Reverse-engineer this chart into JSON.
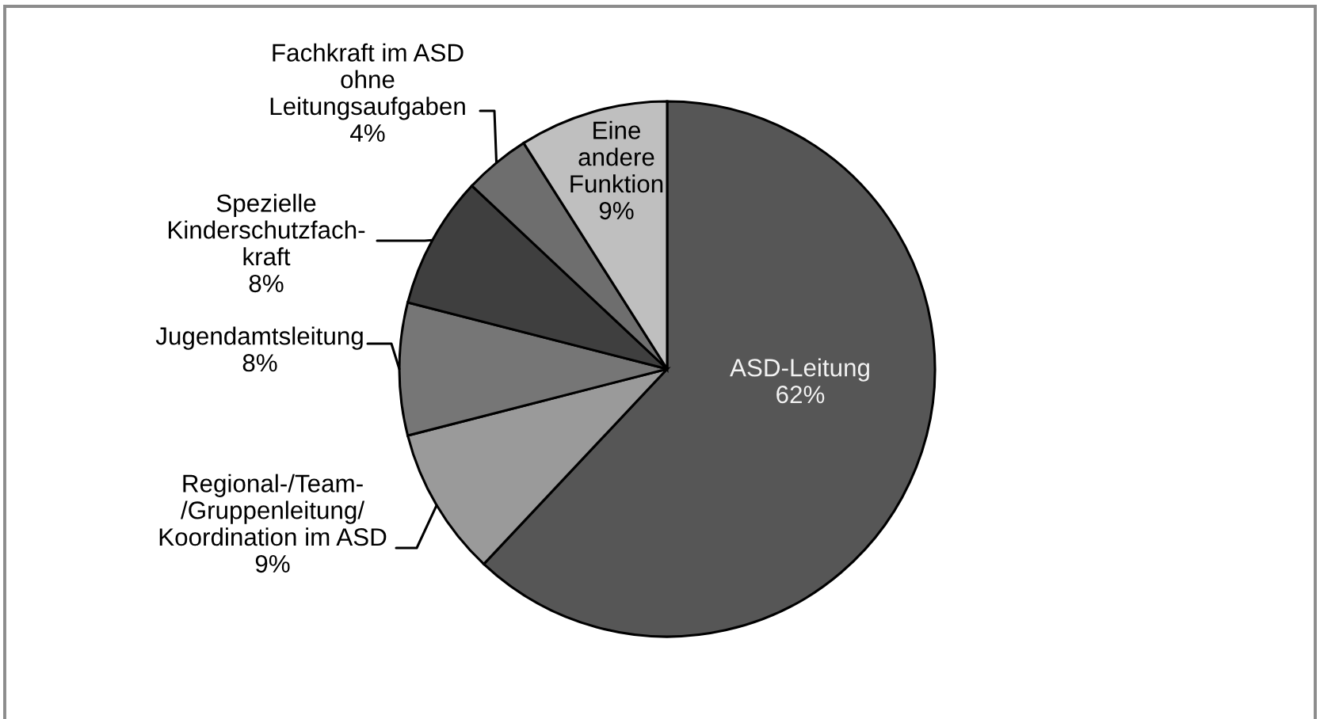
{
  "chart_data": {
    "type": "pie",
    "categories": [
      "ASD-Leitung",
      "Regional-/Team-\n/Gruppenleitung/\nKoordination im ASD",
      "Jugendamtsleitung",
      "Spezielle\nKinderschutzfach-\nkraft",
      "Fachkraft im ASD\nohne\nLeitungsaufgaben",
      "Eine\nandere\nFunktion"
    ],
    "values": [
      62,
      9,
      8,
      8,
      4,
      9
    ],
    "value_labels": [
      "62%",
      "9%",
      "8%",
      "8%",
      "4%",
      "9%"
    ],
    "colors": [
      "#565656",
      "#9a9a9a",
      "#767676",
      "#3f3f3f",
      "#6e6e6e",
      "#bfbfbf"
    ]
  }
}
